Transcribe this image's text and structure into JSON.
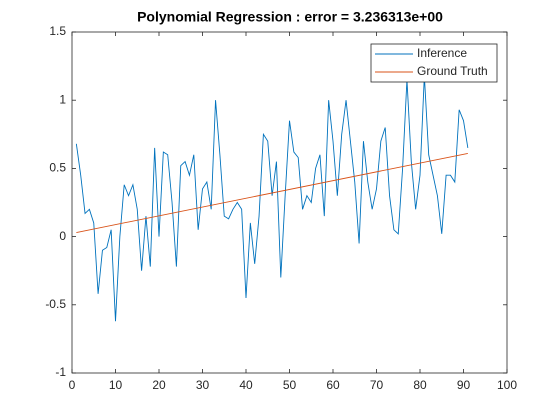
{
  "chart_data": {
    "type": "line",
    "title": "Polynomial Regression : error = 3.236313e+00",
    "x": [
      1,
      2,
      3,
      4,
      5,
      6,
      7,
      8,
      9,
      10,
      11,
      12,
      13,
      14,
      15,
      16,
      17,
      18,
      19,
      20,
      21,
      22,
      23,
      24,
      25,
      26,
      27,
      28,
      29,
      30,
      31,
      32,
      33,
      34,
      35,
      36,
      37,
      38,
      39,
      40,
      41,
      42,
      43,
      44,
      45,
      46,
      47,
      48,
      49,
      50,
      51,
      52,
      53,
      54,
      55,
      56,
      57,
      58,
      59,
      60,
      61,
      62,
      63,
      64,
      65,
      66,
      67,
      68,
      69,
      70,
      71,
      72,
      73,
      74,
      75,
      76,
      77,
      78,
      79,
      80,
      81,
      82,
      83,
      84,
      85,
      86,
      87,
      88,
      89,
      90,
      91
    ],
    "series": [
      {
        "name": "Inference",
        "color": "#0072bd",
        "values": [
          0.68,
          0.45,
          0.17,
          0.2,
          0.1,
          -0.42,
          -0.1,
          -0.08,
          0.05,
          -0.62,
          0.0,
          0.38,
          0.3,
          0.38,
          0.2,
          -0.25,
          0.15,
          -0.22,
          0.65,
          0.0,
          0.62,
          0.6,
          0.25,
          -0.22,
          0.52,
          0.55,
          0.45,
          0.6,
          0.05,
          0.35,
          0.4,
          0.2,
          1.0,
          0.6,
          0.15,
          0.13,
          0.2,
          0.25,
          0.2,
          -0.45,
          0.1,
          -0.2,
          0.15,
          0.75,
          0.7,
          0.3,
          0.55,
          -0.3,
          0.3,
          0.85,
          0.62,
          0.58,
          0.2,
          0.3,
          0.25,
          0.5,
          0.6,
          0.15,
          1.0,
          0.7,
          0.3,
          0.75,
          1.0,
          0.7,
          0.4,
          -0.05,
          0.7,
          0.4,
          0.2,
          0.35,
          0.7,
          0.8,
          0.3,
          0.05,
          0.02,
          0.5,
          1.15,
          0.55,
          0.2,
          0.45,
          1.18,
          0.6,
          0.45,
          0.3,
          0.02,
          0.45,
          0.45,
          0.4,
          0.93,
          0.85,
          0.65
        ]
      },
      {
        "name": "Ground Truth",
        "color": "#d95319",
        "x": [
          1,
          91
        ],
        "values": [
          0.03,
          0.61
        ]
      }
    ],
    "xlim": [
      0,
      100
    ],
    "xticks": [
      0,
      10,
      20,
      30,
      40,
      50,
      60,
      70,
      80,
      90,
      100
    ],
    "ylim": [
      -1,
      1.5
    ],
    "yticks": [
      -1,
      -0.5,
      0,
      0.5,
      1,
      1.5
    ],
    "legend": "northeast",
    "grid": false
  }
}
